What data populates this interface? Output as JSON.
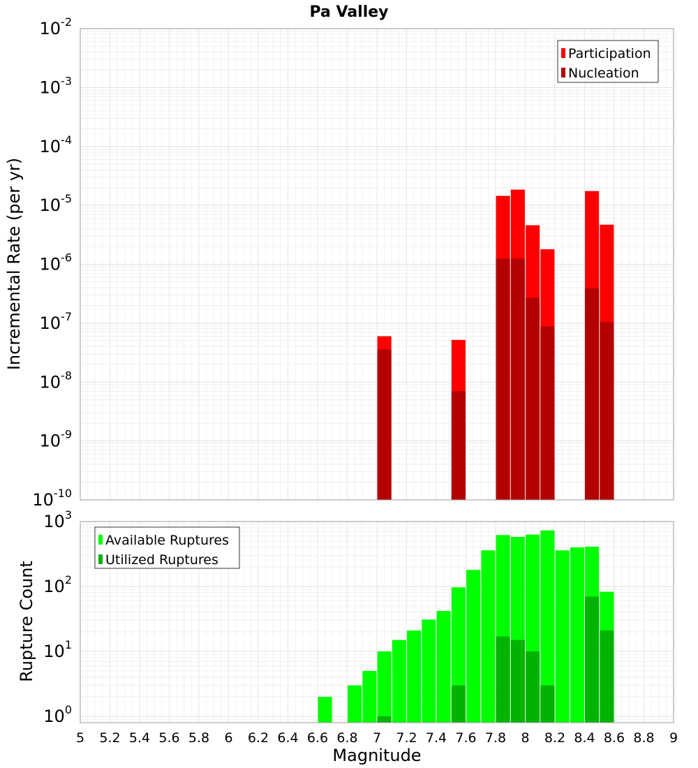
{
  "chart_data": [
    {
      "type": "bar",
      "title": "Pa Valley",
      "ylabel": "Incremental Rate (per yr)",
      "yscale": "log",
      "ylim": [
        1e-10,
        0.01
      ],
      "xlim": [
        5,
        9
      ],
      "ytick_labels": [
        {
          "base": "10",
          "exp": "-10"
        },
        {
          "base": "10",
          "exp": "-9"
        },
        {
          "base": "10",
          "exp": "-8"
        },
        {
          "base": "10",
          "exp": "-7"
        },
        {
          "base": "10",
          "exp": "-6"
        },
        {
          "base": "10",
          "exp": "-5"
        },
        {
          "base": "10",
          "exp": "-4"
        },
        {
          "base": "10",
          "exp": "-3"
        },
        {
          "base": "10",
          "exp": "-2"
        }
      ],
      "legend_position": "top-right",
      "grid": true,
      "series": [
        {
          "name": "Participation",
          "color": "#ff0000",
          "points": [
            {
              "x": 7.05,
              "y": 6e-08
            },
            {
              "x": 7.55,
              "y": 5.2e-08
            },
            {
              "x": 7.85,
              "y": 1.45e-05
            },
            {
              "x": 7.95,
              "y": 1.85e-05
            },
            {
              "x": 8.05,
              "y": 4.6e-06
            },
            {
              "x": 8.15,
              "y": 1.8e-06
            },
            {
              "x": 8.45,
              "y": 1.75e-05
            },
            {
              "x": 8.55,
              "y": 4.7e-06
            }
          ]
        },
        {
          "name": "Nucleation",
          "color": "#b30000",
          "points": [
            {
              "x": 7.05,
              "y": 3.6e-08
            },
            {
              "x": 7.55,
              "y": 7e-09
            },
            {
              "x": 7.85,
              "y": 1.25e-06
            },
            {
              "x": 7.95,
              "y": 1.25e-06
            },
            {
              "x": 8.05,
              "y": 2.7e-07
            },
            {
              "x": 8.15,
              "y": 8.8e-08
            },
            {
              "x": 8.45,
              "y": 3.9e-07
            },
            {
              "x": 8.55,
              "y": 1.05e-07
            }
          ]
        }
      ]
    },
    {
      "type": "bar",
      "xlabel": "Magnitude",
      "ylabel": "Rupture Count",
      "yscale": "log",
      "ylim": [
        0.8,
        1000
      ],
      "xlim": [
        5,
        9
      ],
      "xtick_labels": [
        "5",
        "5.2",
        "5.4",
        "5.6",
        "5.8",
        "6",
        "6.2",
        "6.4",
        "6.6",
        "6.8",
        "7",
        "7.2",
        "7.4",
        "7.6",
        "7.8",
        "8",
        "8.2",
        "8.4",
        "8.6",
        "8.8",
        "9"
      ],
      "ytick_labels": [
        {
          "base": "10",
          "exp": "0"
        },
        {
          "base": "10",
          "exp": "1"
        },
        {
          "base": "10",
          "exp": "2"
        },
        {
          "base": "10",
          "exp": "3"
        }
      ],
      "legend_position": "top-left",
      "grid": true,
      "series": [
        {
          "name": "Available Ruptures",
          "color": "#00ff00",
          "points": [
            {
              "x": 6.65,
              "y": 2
            },
            {
              "x": 6.85,
              "y": 3
            },
            {
              "x": 6.95,
              "y": 5
            },
            {
              "x": 7.05,
              "y": 10
            },
            {
              "x": 7.15,
              "y": 15
            },
            {
              "x": 7.25,
              "y": 21
            },
            {
              "x": 7.35,
              "y": 31
            },
            {
              "x": 7.45,
              "y": 42
            },
            {
              "x": 7.55,
              "y": 97
            },
            {
              "x": 7.65,
              "y": 180
            },
            {
              "x": 7.75,
              "y": 360
            },
            {
              "x": 7.85,
              "y": 620
            },
            {
              "x": 7.95,
              "y": 580
            },
            {
              "x": 8.05,
              "y": 630
            },
            {
              "x": 8.15,
              "y": 730
            },
            {
              "x": 8.25,
              "y": 360
            },
            {
              "x": 8.35,
              "y": 400
            },
            {
              "x": 8.45,
              "y": 410
            },
            {
              "x": 8.55,
              "y": 83
            }
          ]
        },
        {
          "name": "Utilized Ruptures",
          "color": "#00b300",
          "points": [
            {
              "x": 7.05,
              "y": 1
            },
            {
              "x": 7.55,
              "y": 3
            },
            {
              "x": 7.85,
              "y": 17
            },
            {
              "x": 7.95,
              "y": 15
            },
            {
              "x": 8.05,
              "y": 10
            },
            {
              "x": 8.15,
              "y": 3
            },
            {
              "x": 8.45,
              "y": 70
            },
            {
              "x": 8.55,
              "y": 21
            }
          ]
        }
      ]
    }
  ]
}
